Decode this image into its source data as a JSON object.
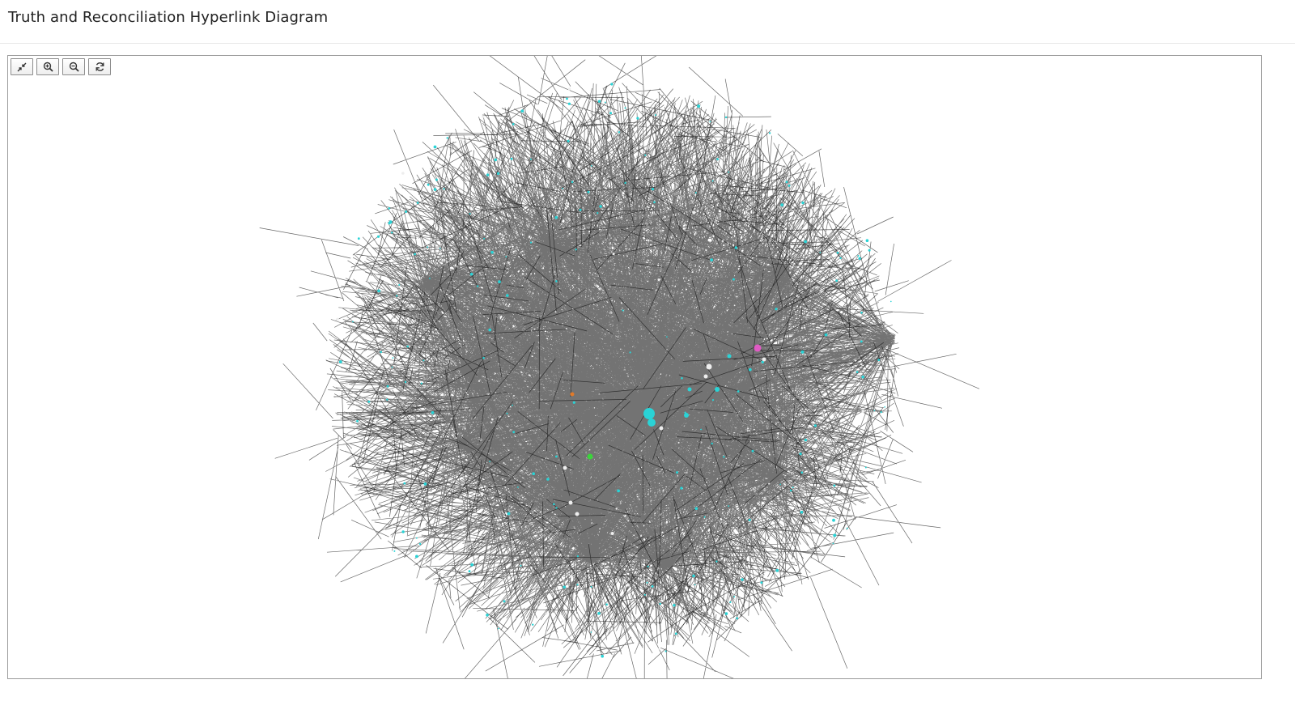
{
  "page": {
    "title": "Truth and Reconciliation Hyperlink Diagram"
  },
  "toolbar": {
    "buttons": [
      {
        "name": "fit",
        "icon": "compress-arrows-icon"
      },
      {
        "name": "zoom-in",
        "icon": "zoom-in-icon"
      },
      {
        "name": "zoom-out",
        "icon": "zoom-out-icon"
      },
      {
        "name": "reset",
        "icon": "refresh-icon"
      }
    ]
  },
  "graph": {
    "edge_color": "#000000",
    "node_colors": {
      "cyan": "#2ad3d6",
      "white": "#eeeeee",
      "magenta": "#e05bc4",
      "green": "#3bd43b",
      "orange": "#e07a2a"
    }
  }
}
